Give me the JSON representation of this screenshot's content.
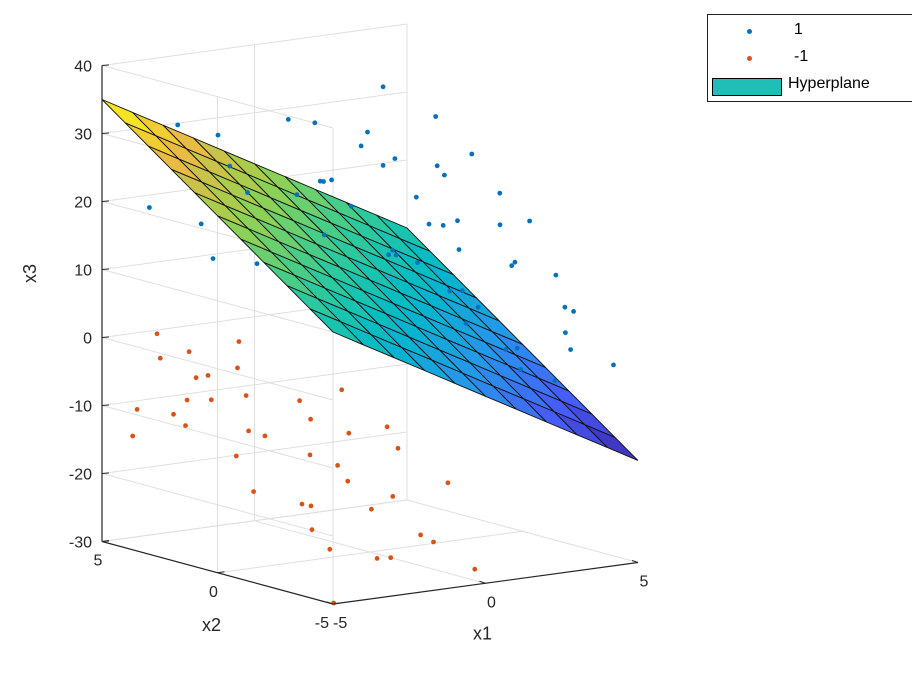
{
  "chart_data": {
    "type": "scatter",
    "subtype": "3d-scatter-with-surface",
    "title": "",
    "xlabel": "x1",
    "ylabel": "x2",
    "zlabel": "x3",
    "xlim": [
      -5,
      5
    ],
    "ylim": [
      -5,
      5
    ],
    "zlim": [
      -30,
      40
    ],
    "x_ticks": [
      "-5",
      "0",
      "5"
    ],
    "y_ticks": [
      "-5",
      "0",
      "5"
    ],
    "z_ticks": [
      "-30",
      "-20",
      "-10",
      "0",
      "10",
      "20",
      "30",
      "40"
    ],
    "grid": true,
    "legend_position": "top-right",
    "legend": [
      {
        "label": "1",
        "kind": "point",
        "color": "#0072BD"
      },
      {
        "label": "-1",
        "kind": "point",
        "color": "#D95319"
      },
      {
        "label": "Hyperplane",
        "kind": "patch",
        "color": "#1FBFB8"
      }
    ],
    "hyperplane": {
      "label": "Hyperplane",
      "equation": "x3 = 10 - 2.5*x1 + 2.5*x2",
      "coef": {
        "intercept": 10,
        "x1": -2.5,
        "x2": 2.5
      },
      "grid_divisions": 10,
      "colormap": "parula"
    },
    "series": [
      {
        "name": "1",
        "color": "#0072BD",
        "points": [
          [
            -3.2,
            4.1,
            31
          ],
          [
            -2.1,
            3.3,
            25
          ],
          [
            -1.5,
            4.6,
            28
          ],
          [
            0.2,
            3.8,
            30
          ],
          [
            1.3,
            2.1,
            27
          ],
          [
            2.7,
            3.0,
            34
          ],
          [
            3.5,
            1.4,
            22
          ],
          [
            -0.8,
            1.1,
            24
          ],
          [
            1.9,
            -0.4,
            26
          ],
          [
            4.2,
            2.7,
            29
          ],
          [
            -2.6,
            1.9,
            18
          ],
          [
            -1.2,
            0.4,
            17
          ],
          [
            0.6,
            1.6,
            19
          ],
          [
            2.2,
            0.9,
            20
          ],
          [
            3.8,
            -0.6,
            21
          ],
          [
            -0.3,
            -1.2,
            15
          ],
          [
            1.1,
            -2.4,
            16
          ],
          [
            2.9,
            -1.8,
            18
          ],
          [
            4.4,
            -1.1,
            17
          ],
          [
            -3.9,
            4.4,
            19
          ],
          [
            -2.2,
            2.4,
            22
          ],
          [
            0.9,
            3.2,
            21
          ],
          [
            2.4,
            2.6,
            23
          ],
          [
            3.1,
            4.2,
            26
          ],
          [
            1.6,
            4.5,
            28
          ],
          [
            -0.2,
            2.9,
            20
          ],
          [
            3.4,
            0.7,
            16
          ],
          [
            4.7,
            1.8,
            24
          ],
          [
            0.4,
            -0.6,
            14
          ],
          [
            1.8,
            1.4,
            12
          ],
          [
            2.6,
            -2.7,
            13
          ],
          [
            3.9,
            -2.9,
            11
          ],
          [
            4.6,
            -0.2,
            10
          ],
          [
            0.1,
            0.3,
            8
          ],
          [
            1.4,
            -1.6,
            9
          ],
          [
            2.8,
            -0.3,
            7
          ],
          [
            4.1,
            -3.4,
            6
          ],
          [
            3.3,
            -4.1,
            4
          ],
          [
            4.8,
            -2.1,
            5
          ],
          [
            2.1,
            -3.6,
            2
          ],
          [
            1.2,
            -4.3,
            3
          ],
          [
            3.6,
            2.2,
            14
          ],
          [
            -1.1,
            3.6,
            13
          ],
          [
            -2.8,
            3.1,
            12
          ],
          [
            -1.9,
            4.8,
            15
          ],
          [
            0.7,
            4.9,
            17
          ],
          [
            2.3,
            4.7,
            19
          ],
          [
            4.3,
            4.6,
            21
          ],
          [
            3.0,
            1.9,
            9
          ],
          [
            1.7,
            3.4,
            11
          ],
          [
            0.3,
            2.2,
            10
          ],
          [
            -0.6,
            4.1,
            9
          ],
          [
            4.9,
            3.3,
            12
          ],
          [
            4.5,
            -4.6,
            -1
          ],
          [
            3.7,
            -3.8,
            1
          ],
          [
            2.5,
            -4.7,
            -2
          ],
          [
            4.0,
            0.6,
            3
          ],
          [
            2.0,
            0.1,
            5
          ],
          [
            0.8,
            -3.1,
            6
          ],
          [
            3.2,
            -2.3,
            -3
          ]
        ]
      },
      {
        "name": "-1",
        "color": "#D95319",
        "points": [
          [
            -4.6,
            4.2,
            -14
          ],
          [
            -3.8,
            2.9,
            -8
          ],
          [
            -2.9,
            3.7,
            -6
          ],
          [
            -4.1,
            1.6,
            -3
          ],
          [
            -3.3,
            0.9,
            -11
          ],
          [
            -2.1,
            -0.2,
            -9
          ],
          [
            -4.8,
            -1.3,
            -17
          ],
          [
            -3.6,
            -2.2,
            -19
          ],
          [
            -2.5,
            -1.9,
            -14
          ],
          [
            -1.6,
            -3.1,
            -18
          ],
          [
            -0.9,
            -2.4,
            -12
          ],
          [
            -4.4,
            -3.3,
            -21
          ],
          [
            -3.1,
            -4.4,
            -25
          ],
          [
            -1.9,
            -4.7,
            -22
          ],
          [
            -0.4,
            -3.9,
            -16
          ],
          [
            -4.9,
            0.4,
            -5
          ],
          [
            -3.9,
            -0.6,
            -10
          ],
          [
            -2.7,
            1.8,
            -7
          ],
          [
            -4.3,
            3.4,
            -2
          ],
          [
            -3.5,
            4.6,
            0
          ],
          [
            -2.3,
            2.7,
            -4
          ],
          [
            -1.4,
            1.2,
            -8
          ],
          [
            -0.7,
            0.3,
            -6
          ],
          [
            -4.7,
            2.3,
            -9
          ],
          [
            -3.0,
            -3.0,
            -15
          ],
          [
            -2.0,
            -2.7,
            -20
          ],
          [
            -4.5,
            -4.2,
            -23
          ],
          [
            -1.1,
            -4.2,
            -24
          ],
          [
            -3.7,
            3.1,
            -12
          ],
          [
            -4.0,
            4.8,
            -11
          ],
          [
            -2.6,
            4.4,
            -3
          ],
          [
            -1.8,
            3.3,
            -1
          ],
          [
            -0.5,
            -1.4,
            -10
          ],
          [
            -2.8,
            -1.1,
            -13
          ],
          [
            -4.2,
            -2.6,
            -18
          ],
          [
            -1.3,
            -0.8,
            -11
          ],
          [
            -3.4,
            1.3,
            -15
          ],
          [
            -0.2,
            -4.8,
            -28
          ],
          [
            -2.2,
            -3.8,
            -26
          ],
          [
            -4.9,
            -4.9,
            -30
          ]
        ]
      }
    ]
  }
}
